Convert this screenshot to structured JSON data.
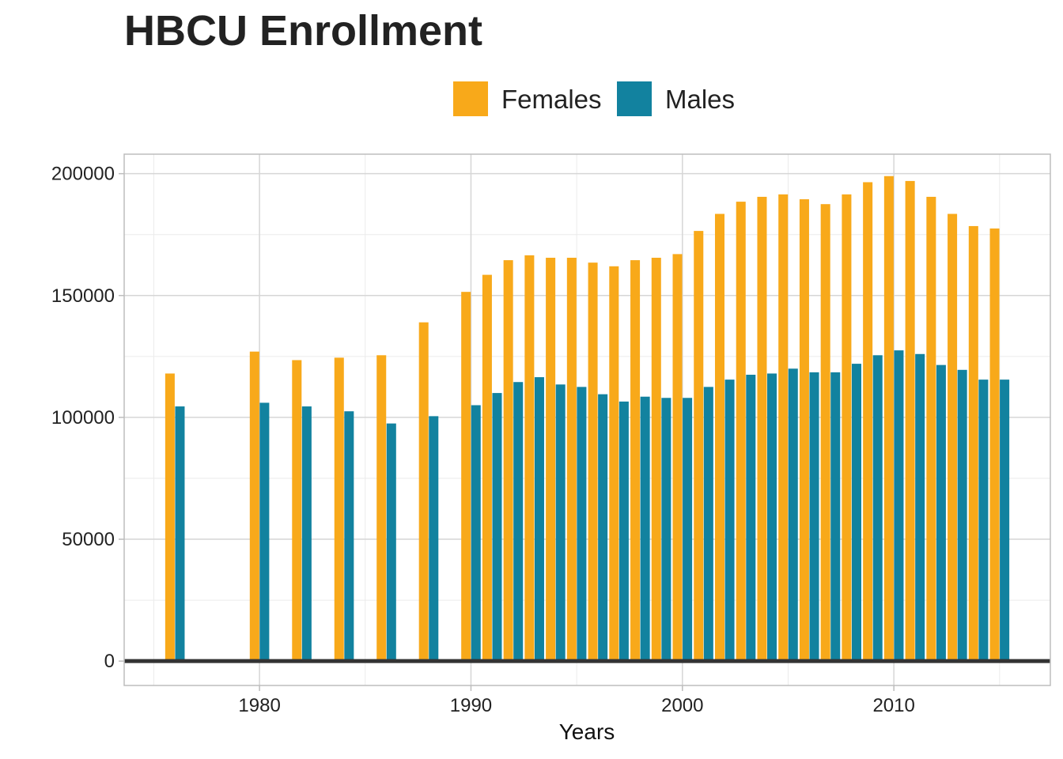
{
  "chart_data": {
    "type": "bar",
    "title": "HBCU Enrollment",
    "xlabel": "Years",
    "ylabel": "",
    "xlim": [
      1973.6,
      2017.4
    ],
    "ylim": [
      -10000,
      208000
    ],
    "x_ticks": [
      1980,
      1990,
      2000,
      2010
    ],
    "y_ticks": [
      0,
      50000,
      100000,
      150000,
      200000
    ],
    "x_tick_labels": [
      "1980",
      "1990",
      "2000",
      "2010"
    ],
    "y_tick_labels": [
      "0",
      "50000",
      "100000",
      "150000",
      "200000"
    ],
    "grid": true,
    "legend_position": "top",
    "x": [
      1976,
      1980,
      1982,
      1984,
      1986,
      1988,
      1990,
      1991,
      1992,
      1993,
      1994,
      1995,
      1996,
      1997,
      1998,
      1999,
      2000,
      2001,
      2002,
      2003,
      2004,
      2005,
      2006,
      2007,
      2008,
      2009,
      2010,
      2011,
      2012,
      2013,
      2014,
      2015
    ],
    "series": [
      {
        "name": "Females",
        "color": "#F8A91A",
        "values": [
          118000,
          127000,
          123500,
          124500,
          125500,
          139000,
          151500,
          158500,
          164500,
          166500,
          165500,
          165500,
          163500,
          162000,
          164500,
          165500,
          167000,
          176500,
          183500,
          188500,
          190500,
          191500,
          189500,
          187500,
          191500,
          196500,
          199000,
          197000,
          190500,
          183500,
          178500,
          177500
        ]
      },
      {
        "name": "Males",
        "color": "#12829F",
        "values": [
          104500,
          106000,
          104500,
          102500,
          97500,
          100500,
          105000,
          110000,
          114500,
          116500,
          113500,
          112500,
          109500,
          106500,
          108500,
          108000,
          108000,
          112500,
          115500,
          117500,
          118000,
          120000,
          118500,
          118500,
          122000,
          125500,
          127500,
          126000,
          121500,
          119500,
          115500,
          115500
        ]
      }
    ]
  }
}
